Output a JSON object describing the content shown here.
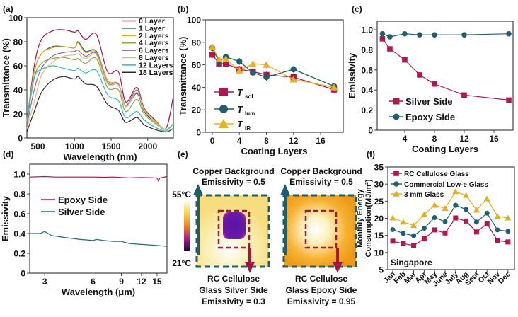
{
  "panels": {
    "a": "(a)",
    "b": "(b)",
    "c": "(c)",
    "d": "(d)",
    "e": "(e)",
    "f": "(f)"
  },
  "thermal": {
    "scale_max": "55°C",
    "scale_min": "21°C",
    "left_top_1": "Copper Background",
    "left_top_2": "Emissivity = 0.5",
    "right_top_1": "Copper Background",
    "right_top_2": "Emissivity = 0.5",
    "left_bottom_1": "RC Cellulose",
    "left_bottom_2": "Glass Silver Side",
    "left_bottom_3": "Emissivity = 0.3",
    "right_bottom_1": "RC Cellulose",
    "right_bottom_2": "Glass Epoxy Side",
    "right_bottom_3": "Emissivity = 0.95",
    "colors": {
      "teal": "#1d5e6e",
      "crimson": "#a3163f"
    }
  },
  "chart_data": [
    {
      "type": "line",
      "panel": "a",
      "xlabel": "Wavelength (nm)",
      "ylabel": "Transmittance (%)",
      "xlim": [
        350,
        2350
      ],
      "ylim": [
        0,
        100
      ],
      "xticks": [
        500,
        1000,
        1500,
        2000
      ],
      "yticks": [
        0,
        20,
        40,
        60,
        80,
        100
      ],
      "legend": "top-right",
      "x": [
        350,
        450,
        550,
        700,
        850,
        1000,
        1050,
        1150,
        1300,
        1450,
        1600,
        1700,
        1850,
        1950,
        2100,
        2250,
        2350
      ],
      "series": [
        {
          "name": "0 Layer",
          "color": "#a3164f",
          "values": [
            12,
            60,
            82,
            89,
            90,
            88,
            89,
            82,
            86,
            55,
            55,
            30,
            42,
            25,
            15,
            8,
            35
          ]
        },
        {
          "name": "1 Layer",
          "color": "#1f5f6e",
          "values": [
            15,
            55,
            70,
            76,
            76,
            75,
            80,
            72,
            72,
            48,
            44,
            26,
            37,
            22,
            13,
            7,
            12
          ]
        },
        {
          "name": "2 Layers",
          "color": "#e0b020",
          "values": [
            14,
            55,
            70,
            75,
            76,
            75,
            79,
            71,
            71,
            48,
            45,
            26,
            38,
            23,
            14,
            7,
            12
          ]
        },
        {
          "name": "4 Layers",
          "color": "#8aa84a",
          "values": [
            12,
            50,
            62,
            66,
            67,
            65,
            66,
            62,
            66,
            42,
            40,
            22,
            32,
            20,
            12,
            7,
            12
          ]
        },
        {
          "name": "6 Layers",
          "color": "#9a5fa8",
          "values": [
            10,
            40,
            58,
            68,
            71,
            72,
            73,
            68,
            70,
            46,
            45,
            27,
            40,
            24,
            13,
            7,
            12
          ]
        },
        {
          "name": "8 Layers",
          "color": "#d6c07e",
          "values": [
            8,
            30,
            52,
            63,
            68,
            69,
            70,
            66,
            69,
            45,
            44,
            26,
            38,
            24,
            13,
            7,
            12
          ]
        },
        {
          "name": "12 Layers",
          "color": "#30b8c4",
          "values": [
            15,
            50,
            57,
            60,
            58,
            56,
            58,
            54,
            56,
            36,
            31,
            17,
            22,
            15,
            9,
            6,
            12
          ]
        },
        {
          "name": "18 Layers",
          "color": "#3a2434",
          "values": [
            5,
            22,
            38,
            48,
            51,
            49,
            51,
            45,
            43,
            28,
            23,
            13,
            17,
            11,
            7,
            5,
            8
          ]
        }
      ]
    },
    {
      "type": "line",
      "panel": "b",
      "xlabel": "Coating Layers",
      "ylabel": "Transmittance (%)",
      "xlim": [
        -1,
        19.3
      ],
      "ylim": [
        0,
        100
      ],
      "xticks": [
        0,
        4,
        8,
        12,
        16
      ],
      "yticks": [
        0,
        20,
        40,
        60,
        80,
        100
      ],
      "legend": "bottom-left",
      "x": [
        0,
        1,
        2,
        4,
        6,
        8,
        12,
        18
      ],
      "series": [
        {
          "name": "T",
          "sub": "sol",
          "marker": "square",
          "color": "#b0164f",
          "values": [
            69,
            61,
            61,
            56,
            54,
            51,
            49,
            38
          ],
          "error": 3
        },
        {
          "name": "T",
          "sub": "lum",
          "marker": "circle",
          "color": "#1f5f6e",
          "values": [
            75,
            63,
            67,
            63,
            53,
            49,
            56,
            41
          ],
          "error": 3
        },
        {
          "name": "T",
          "sub": "IR",
          "marker": "triangle",
          "color": "#e8b020",
          "values": [
            76,
            65,
            65,
            55,
            61,
            60,
            47,
            40
          ],
          "error": 3
        }
      ]
    },
    {
      "type": "line",
      "panel": "c",
      "xlabel": "Coating Layers",
      "ylabel": "Emissivity",
      "xlim": [
        0.3,
        18.6
      ],
      "ylim": [
        0,
        1.085
      ],
      "xticks": [
        4,
        8,
        12,
        16
      ],
      "yticks": [
        "0",
        "0.2",
        "0.4",
        "0.6",
        "0.8",
        "1.0"
      ],
      "legend": "bottom-left",
      "x": [
        1,
        2,
        4,
        6,
        8,
        12,
        18
      ],
      "series": [
        {
          "name": "Silver Side",
          "marker": "square",
          "color": "#b0164f",
          "values": [
            0.91,
            0.81,
            0.7,
            0.55,
            0.46,
            0.35,
            0.3
          ]
        },
        {
          "name": "Epoxy Side",
          "marker": "circle",
          "color": "#1f5f6e",
          "values": [
            0.96,
            0.93,
            0.96,
            0.95,
            0.95,
            0.95,
            0.96
          ]
        }
      ]
    },
    {
      "type": "line",
      "panel": "d",
      "xlabel": "Wavelength (μm)",
      "ylabel": "Emissivity",
      "xscale": "log",
      "xlim": [
        2.42,
        17.3
      ],
      "ylim": [
        0,
        1.1
      ],
      "xticks": [
        3,
        6,
        9,
        12,
        15
      ],
      "yticks": [
        "0",
        "0.2",
        "0.4",
        "0.6",
        "0.8",
        "1.0"
      ],
      "legend": "center-left",
      "series": [
        {
          "name": "Epoxy Side",
          "color": "#b0164f",
          "x": [
            2.42,
            3,
            3.5,
            4,
            5,
            6,
            7,
            8,
            9,
            10,
            12,
            14,
            15,
            15.3,
            15.6,
            17.3
          ],
          "values": [
            0.97,
            0.975,
            0.97,
            0.97,
            0.97,
            0.97,
            0.968,
            0.97,
            0.965,
            0.962,
            0.965,
            0.963,
            0.96,
            0.93,
            0.96,
            0.975
          ]
        },
        {
          "name": "Silver Side",
          "color": "#1f6e78",
          "x": [
            2.42,
            2.8,
            3,
            3.3,
            4,
            5,
            6,
            6.3,
            7,
            8,
            9,
            10,
            12,
            15,
            17.3
          ],
          "values": [
            0.4,
            0.4,
            0.42,
            0.38,
            0.36,
            0.34,
            0.33,
            0.34,
            0.33,
            0.32,
            0.32,
            0.3,
            0.29,
            0.28,
            0.27
          ]
        }
      ]
    },
    {
      "type": "line",
      "panel": "f",
      "ylabel": "Monthly Energy",
      "ylabel2": "Consumption(MJ/m²)",
      "annotation": "Singapore",
      "ylim": [
        5,
        35
      ],
      "yticks": [
        5,
        10,
        15,
        20,
        25,
        30,
        35
      ],
      "legend": "top-left",
      "categories": [
        "Jan",
        "Feb",
        "Mar",
        "Apr",
        "May",
        "June",
        "July",
        "Aug",
        "Sept",
        "Oct",
        "Nov",
        "Dec"
      ],
      "series": [
        {
          "name": "RC Cellulose Glass",
          "marker": "square",
          "color": "#b0164f",
          "values": [
            13.3,
            12.6,
            12.1,
            14.0,
            16.6,
            15.7,
            20.1,
            19.2,
            16.0,
            18.4,
            13.5,
            13.1
          ]
        },
        {
          "name": "Commercial Low-e Glass",
          "marker": "circle",
          "color": "#1f5f6e",
          "values": [
            16.7,
            15.6,
            14.9,
            17.1,
            20.2,
            19.0,
            23.8,
            22.6,
            18.9,
            21.5,
            16.6,
            16.2
          ]
        },
        {
          "name": "3 mm Glass",
          "marker": "triangle",
          "color": "#e0b020",
          "values": [
            20.1,
            18.9,
            17.9,
            21.1,
            23.8,
            22.9,
            27.8,
            26.7,
            22.4,
            25.7,
            20.6,
            20.1
          ]
        }
      ]
    }
  ]
}
